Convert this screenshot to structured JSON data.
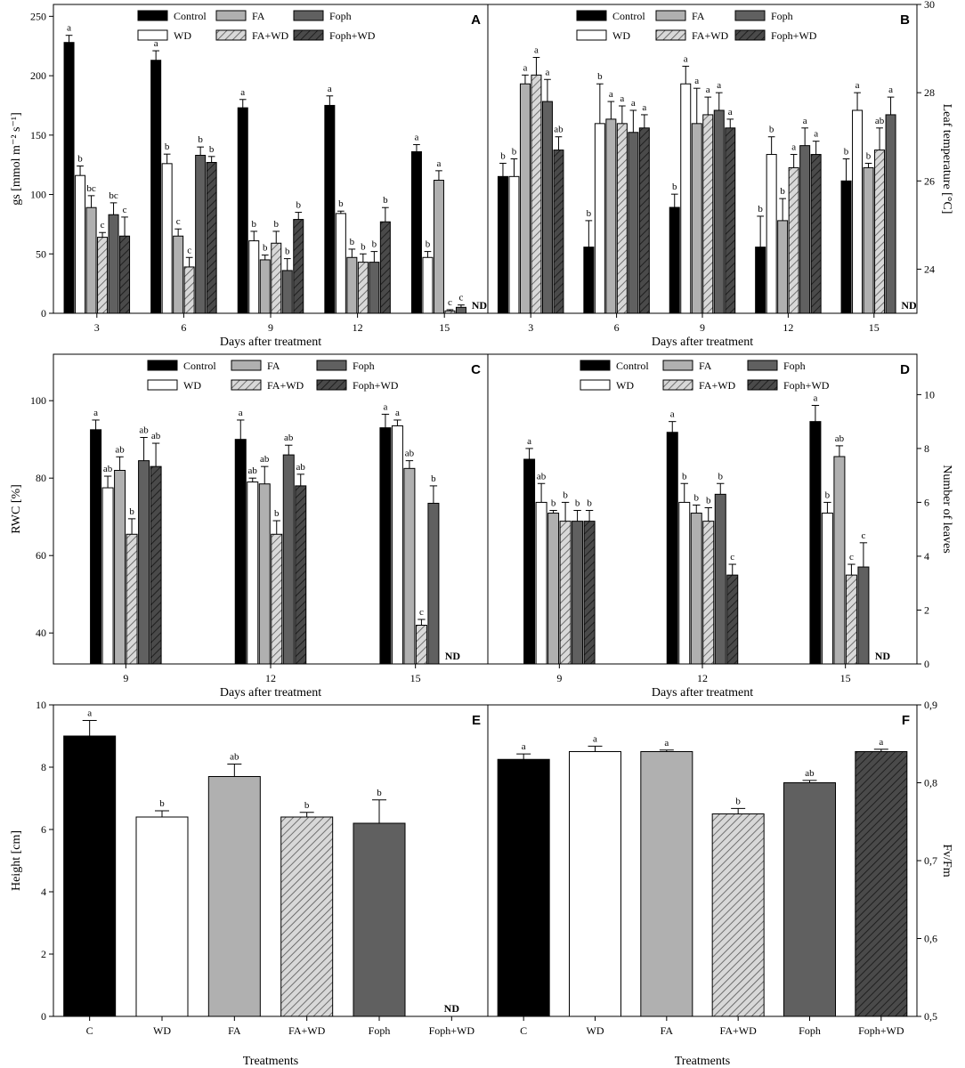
{
  "figure_title": "Multi-panel bar charts of plant physiological responses",
  "colors": {
    "Control": "#000000",
    "WD": "#ffffff",
    "FA": "#b0b0b0",
    "FA+WD": "#d8d8d8",
    "Foph": "#606060",
    "Foph+WD": "#4a4a4a"
  },
  "hatched": [
    "FA+WD",
    "Foph+WD"
  ],
  "legend_labels": [
    "Control",
    "FA",
    "Foph",
    "WD",
    "FA+WD",
    "Foph+WD"
  ],
  "chart_data": [
    {
      "id": "A",
      "type": "bar",
      "panel_label": "A",
      "xlabel": "Days after treatment",
      "ylabel": "gs [mmol m⁻² s⁻¹]",
      "ylim": [
        0,
        260
      ],
      "yticks": [
        0,
        50,
        100,
        150,
        200,
        250
      ],
      "ytick_labels": [
        "0",
        "50",
        "100",
        "150",
        "200",
        "250"
      ],
      "yaxis_side": "left",
      "categories": [
        "3",
        "6",
        "9",
        "12",
        "15"
      ],
      "series": [
        {
          "name": "Control",
          "values": [
            228,
            213,
            173,
            175,
            136
          ],
          "errors": [
            6,
            8,
            7,
            8,
            6
          ],
          "letters": [
            "a",
            "a",
            "a",
            "a",
            "a"
          ]
        },
        {
          "name": "WD",
          "values": [
            116,
            126,
            61,
            84,
            47
          ],
          "errors": [
            8,
            8,
            8,
            2,
            5
          ],
          "letters": [
            "b",
            "b",
            "b",
            "b",
            "b"
          ]
        },
        {
          "name": "FA",
          "values": [
            89,
            65,
            45,
            47,
            112
          ],
          "errors": [
            10,
            6,
            4,
            7,
            8
          ],
          "letters": [
            "bc",
            "c",
            "b",
            "b",
            "a"
          ]
        },
        {
          "name": "FA+WD",
          "values": [
            64,
            39,
            59,
            43,
            2
          ],
          "errors": [
            4,
            8,
            10,
            7,
            1
          ],
          "letters": [
            "c",
            "c",
            "b",
            "b",
            "c"
          ]
        },
        {
          "name": "Foph",
          "values": [
            83,
            133,
            36,
            43,
            5
          ],
          "errors": [
            10,
            7,
            10,
            9,
            2
          ],
          "letters": [
            "bc",
            "b",
            "b",
            "b",
            "c"
          ]
        },
        {
          "name": "Foph+WD",
          "values": [
            65,
            127,
            79,
            77,
            null
          ],
          "errors": [
            16,
            5,
            6,
            12,
            null
          ],
          "letters": [
            "c",
            "b",
            "b",
            "b",
            ""
          ]
        }
      ],
      "nd_labels": [
        {
          "category": "15",
          "series": "Foph+WD",
          "text": "ND"
        }
      ]
    },
    {
      "id": "B",
      "type": "bar",
      "panel_label": "B",
      "xlabel": "Days after treatment",
      "ylabel": "Leaf temperature [°C]",
      "ylim": [
        23,
        30
      ],
      "yticks": [
        24,
        26,
        28,
        30
      ],
      "ytick_labels": [
        "24",
        "26",
        "28",
        "30"
      ],
      "yaxis_side": "right",
      "categories": [
        "3",
        "6",
        "9",
        "12",
        "15"
      ],
      "series": [
        {
          "name": "Control",
          "values": [
            26.1,
            24.5,
            25.4,
            24.5,
            26.0
          ],
          "errors": [
            0.3,
            0.6,
            0.3,
            0.7,
            0.5
          ],
          "letters": [
            "b",
            "b",
            "b",
            "b",
            "b"
          ]
        },
        {
          "name": "WD",
          "values": [
            26.1,
            27.3,
            28.2,
            26.6,
            27.6
          ],
          "errors": [
            0.4,
            0.9,
            0.4,
            0.4,
            0.4
          ],
          "letters": [
            "b",
            "b",
            "a",
            "b",
            "a"
          ]
        },
        {
          "name": "FA",
          "values": [
            28.2,
            27.4,
            27.3,
            25.1,
            26.3
          ],
          "errors": [
            0.2,
            0.4,
            0.8,
            0.5,
            0.1
          ],
          "letters": [
            "a",
            "a",
            "a",
            "b",
            "b"
          ]
        },
        {
          "name": "FA+WD",
          "values": [
            28.4,
            27.3,
            27.5,
            26.3,
            26.7
          ],
          "errors": [
            0.4,
            0.4,
            0.4,
            0.3,
            0.5
          ],
          "letters": [
            "a",
            "a",
            "a",
            "a",
            "ab"
          ]
        },
        {
          "name": "Foph",
          "values": [
            27.8,
            27.1,
            27.6,
            26.8,
            27.5
          ],
          "errors": [
            0.5,
            0.5,
            0.4,
            0.4,
            0.4
          ],
          "letters": [
            "a",
            "a",
            "a",
            "a",
            "a"
          ]
        },
        {
          "name": "Foph+WD",
          "values": [
            26.7,
            27.2,
            27.2,
            26.6,
            null
          ],
          "errors": [
            0.3,
            0.3,
            0.2,
            0.3,
            null
          ],
          "letters": [
            "ab",
            "a",
            "a",
            "a",
            ""
          ]
        }
      ],
      "nd_labels": [
        {
          "category": "15",
          "series": "Foph+WD",
          "text": "ND"
        }
      ]
    },
    {
      "id": "C",
      "type": "bar",
      "panel_label": "C",
      "xlabel": "Days after treatment",
      "ylabel": "RWC [%]",
      "ylim": [
        32,
        112
      ],
      "yticks": [
        40,
        60,
        80,
        100
      ],
      "ytick_labels": [
        "40",
        "60",
        "80",
        "100"
      ],
      "yaxis_side": "left",
      "categories": [
        "9",
        "12",
        "15"
      ],
      "series": [
        {
          "name": "Control",
          "values": [
            92.5,
            90,
            93
          ],
          "errors": [
            2.5,
            5,
            3.5
          ],
          "letters": [
            "a",
            "a",
            "a"
          ]
        },
        {
          "name": "WD",
          "values": [
            77.5,
            79,
            93.5
          ],
          "errors": [
            3,
            1,
            1.5
          ],
          "letters": [
            "ab",
            "ab",
            "a"
          ]
        },
        {
          "name": "FA",
          "values": [
            82,
            78.5,
            82.5
          ],
          "errors": [
            3.5,
            4.5,
            2
          ],
          "letters": [
            "ab",
            "ab",
            "ab"
          ]
        },
        {
          "name": "FA+WD",
          "values": [
            65.5,
            65.5,
            42
          ],
          "errors": [
            4,
            3.5,
            1.5
          ],
          "letters": [
            "b",
            "b",
            "c"
          ]
        },
        {
          "name": "Foph",
          "values": [
            84.5,
            86,
            73.5
          ],
          "errors": [
            6,
            2.5,
            4.5
          ],
          "letters": [
            "ab",
            "ab",
            "b"
          ]
        },
        {
          "name": "Foph+WD",
          "values": [
            83,
            78,
            null
          ],
          "errors": [
            6,
            3,
            null
          ],
          "letters": [
            "ab",
            "ab",
            ""
          ]
        }
      ],
      "nd_labels": [
        {
          "category": "15",
          "series": "Foph+WD",
          "text": "ND"
        }
      ]
    },
    {
      "id": "D",
      "type": "bar",
      "panel_label": "D",
      "xlabel": "Days after treatment",
      "ylabel": "Number of leaves",
      "ylim": [
        0,
        11.5
      ],
      "yticks": [
        0,
        2,
        4,
        6,
        8,
        10
      ],
      "ytick_labels": [
        "0",
        "2",
        "4",
        "6",
        "8",
        "10"
      ],
      "yaxis_side": "right",
      "categories": [
        "9",
        "12",
        "15"
      ],
      "series": [
        {
          "name": "Control",
          "values": [
            7.6,
            8.6,
            9
          ],
          "errors": [
            0.4,
            0.4,
            0.6
          ],
          "letters": [
            "a",
            "a",
            "a"
          ]
        },
        {
          "name": "WD",
          "values": [
            6,
            6,
            5.6
          ],
          "errors": [
            0.7,
            0.7,
            0.4
          ],
          "letters": [
            "ab",
            "b",
            "b"
          ]
        },
        {
          "name": "FA",
          "values": [
            5.6,
            5.6,
            7.7
          ],
          "errors": [
            0.1,
            0.3,
            0.4
          ],
          "letters": [
            "b",
            "b",
            "ab"
          ]
        },
        {
          "name": "FA+WD",
          "values": [
            5.3,
            5.3,
            3.3
          ],
          "errors": [
            0.7,
            0.5,
            0.4
          ],
          "letters": [
            "b",
            "b",
            "c"
          ]
        },
        {
          "name": "Foph",
          "values": [
            5.3,
            6.3,
            3.6
          ],
          "errors": [
            0.4,
            0.4,
            0.9
          ],
          "letters": [
            "b",
            "b",
            "c"
          ]
        },
        {
          "name": "Foph+WD",
          "values": [
            5.3,
            3.3,
            null
          ],
          "errors": [
            0.4,
            0.4,
            null
          ],
          "letters": [
            "b",
            "c",
            ""
          ]
        }
      ],
      "nd_labels": [
        {
          "category": "15",
          "series": "Foph+WD",
          "text": "ND"
        }
      ]
    },
    {
      "id": "E",
      "type": "bar",
      "panel_label": "E",
      "xlabel": "Treatments",
      "ylabel": "Height [cm]",
      "ylim": [
        0,
        10
      ],
      "yticks": [
        0,
        2,
        4,
        6,
        8,
        10
      ],
      "ytick_labels": [
        "0",
        "2",
        "4",
        "6",
        "8",
        "10"
      ],
      "yaxis_side": "left",
      "categories": [
        "C",
        "WD",
        "FA",
        "FA+WD",
        "Foph",
        "Foph+WD"
      ],
      "bar_series": [
        "Control",
        "WD",
        "FA",
        "FA+WD",
        "Foph",
        "Foph+WD"
      ],
      "values": [
        9,
        6.4,
        7.7,
        6.4,
        6.2,
        null
      ],
      "errors": [
        0.5,
        0.2,
        0.4,
        0.15,
        0.75,
        null
      ],
      "letters": [
        "a",
        "b",
        "ab",
        "b",
        "b",
        ""
      ],
      "nd_labels": [
        {
          "category": "Foph+WD",
          "text": "ND"
        }
      ]
    },
    {
      "id": "F",
      "type": "bar",
      "panel_label": "F",
      "xlabel": "Treatments",
      "ylabel": "Fv/Fm",
      "ylim": [
        0.5,
        0.9
      ],
      "yticks": [
        0.5,
        0.6,
        0.7,
        0.8,
        0.9
      ],
      "ytick_labels": [
        "0,5",
        "0,6",
        "0,7",
        "0,8",
        "0,9"
      ],
      "yaxis_side": "right",
      "categories": [
        "C",
        "WD",
        "FA",
        "FA+WD",
        "Foph",
        "Foph+WD"
      ],
      "bar_series": [
        "Control",
        "WD",
        "FA",
        "FA+WD",
        "Foph",
        "Foph+WD"
      ],
      "values": [
        0.83,
        0.84,
        0.84,
        0.76,
        0.8,
        0.84
      ],
      "errors": [
        0.007,
        0.007,
        0.002,
        0.007,
        0.003,
        0.003
      ],
      "letters": [
        "a",
        "a",
        "a",
        "b",
        "ab",
        "a"
      ],
      "nd_labels": []
    }
  ]
}
